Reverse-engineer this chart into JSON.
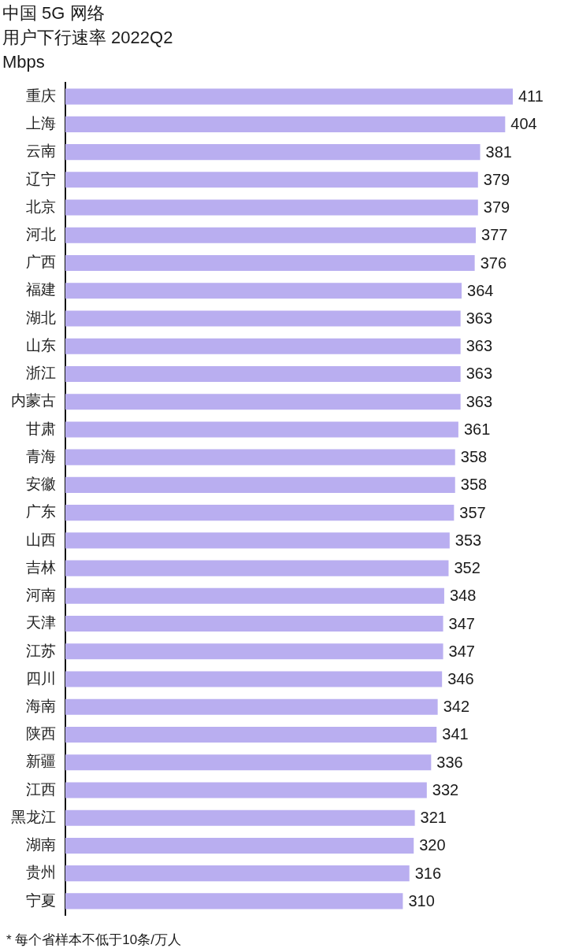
{
  "chart_data": {
    "type": "bar",
    "orientation": "horizontal",
    "title": "中国 5G 网络",
    "subtitle": "用户下行速率 2022Q2",
    "xlabel": "Mbps",
    "annotations": [
      "* 每个省样本不低于10条/万人"
    ],
    "categories": [
      "重庆",
      "上海",
      "云南",
      "辽宁",
      "北京",
      "河北",
      "广西",
      "福建",
      "湖北",
      "山东",
      "浙江",
      "内蒙古",
      "甘肃",
      "青海",
      "安徽",
      "广东",
      "山西",
      "吉林",
      "河南",
      "天津",
      "江苏",
      "四川",
      "海南",
      "陕西",
      "新疆",
      "江西",
      "黑龙江",
      "湖南",
      "贵州",
      "宁夏"
    ],
    "values": [
      411,
      404,
      381,
      379,
      379,
      377,
      376,
      364,
      363,
      363,
      363,
      363,
      361,
      358,
      358,
      357,
      353,
      352,
      348,
      347,
      347,
      346,
      342,
      341,
      336,
      332,
      321,
      320,
      316,
      310
    ],
    "color": "#b9aef0",
    "data_labels": true
  }
}
